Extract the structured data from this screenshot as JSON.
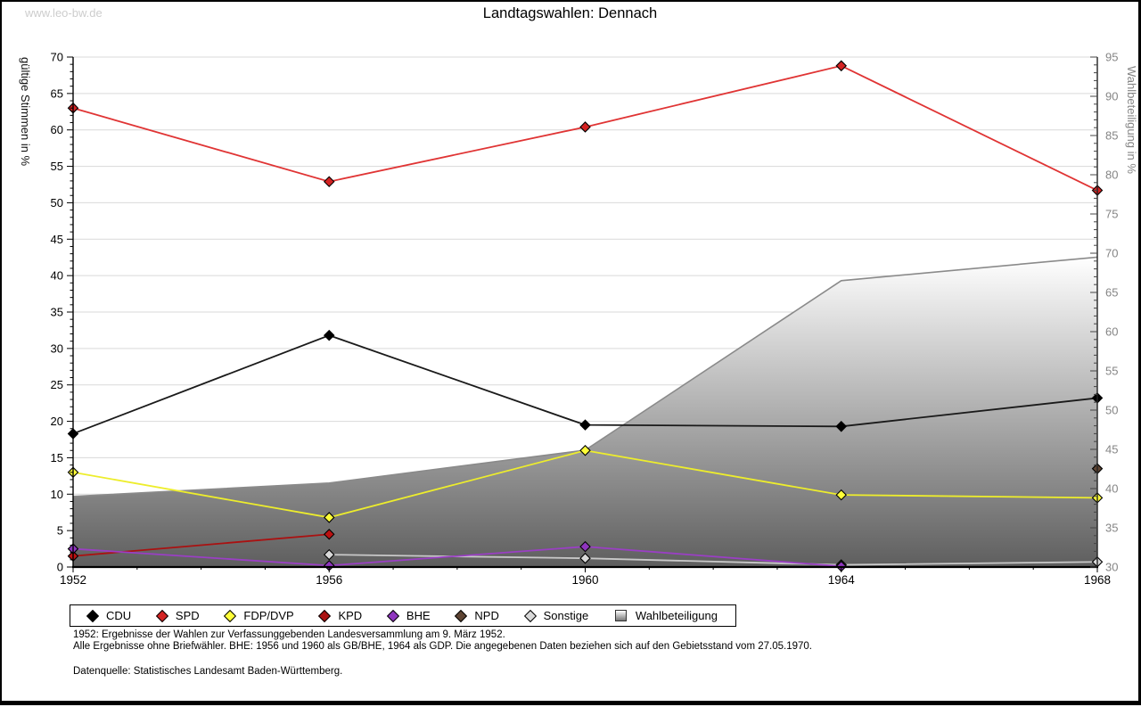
{
  "page": {
    "watermark": "www.leo-bw.de",
    "title": "Landtagswahlen: Dennach"
  },
  "chart_data": {
    "type": "line",
    "title": "Landtagswahlen: Dennach",
    "x": [
      1952,
      1956,
      1960,
      1964,
      1968
    ],
    "x_tick_labels": [
      "1952",
      "1956",
      "1960",
      "1964",
      "1968"
    ],
    "ylabel_left": "gültige Stimmen in %",
    "ylabel_right": "Wahlbeteiligung in %",
    "ylim_left": [
      0,
      70
    ],
    "ylim_right": [
      30,
      95
    ],
    "ytick_step": 5,
    "grid": true,
    "legend_position": "bottom",
    "series": [
      {
        "name": "Wahlbeteiligung",
        "kind": "area",
        "axis": "right",
        "color": "#8a8a8a",
        "values": [
          39.0,
          40.7,
          44.9,
          66.5,
          69.5
        ]
      },
      {
        "name": "Sonstige",
        "kind": "line",
        "axis": "left",
        "color": "#c9c9c9",
        "marker": "#d9d9d9",
        "values": [
          null,
          1.7,
          1.2,
          0.3,
          0.7
        ]
      },
      {
        "name": "KPD",
        "kind": "line",
        "axis": "left",
        "color": "#aa1111",
        "marker": "#bb1111",
        "values": [
          1.5,
          4.5,
          null,
          null,
          null
        ]
      },
      {
        "name": "BHE",
        "kind": "line",
        "axis": "left",
        "color": "#9a3fc4",
        "marker": "#8f35bf",
        "values": [
          2.5,
          0.2,
          2.8,
          0.1,
          null
        ]
      },
      {
        "name": "NPD",
        "kind": "line",
        "axis": "left",
        "color": "#5e4433",
        "marker": "#5e4433",
        "values": [
          null,
          null,
          null,
          null,
          13.5
        ]
      },
      {
        "name": "FDP/DVP",
        "kind": "line",
        "axis": "left",
        "color": "#eded2c",
        "marker": "#ffff38",
        "values": [
          13.0,
          6.8,
          16.0,
          9.9,
          9.5
        ]
      },
      {
        "name": "SPD",
        "kind": "line",
        "axis": "left",
        "color": "#e03434",
        "marker": "#d42222",
        "values": [
          63.0,
          52.9,
          60.4,
          68.8,
          51.7
        ]
      },
      {
        "name": "CDU",
        "kind": "line",
        "axis": "left",
        "color": "#1a1a1a",
        "marker": "#000000",
        "values": [
          18.3,
          31.8,
          19.5,
          19.3,
          23.2
        ]
      }
    ],
    "area_gradient": {
      "top": "#ffffff",
      "bottom": "#5e5e5e"
    },
    "grid_color": "#d9d9d9",
    "right_axis_text_color": "#858585"
  },
  "legend": {
    "items": [
      {
        "label": "CDU",
        "icon": "diamond",
        "color": "#000000"
      },
      {
        "label": "SPD",
        "icon": "diamond",
        "color": "#d42222"
      },
      {
        "label": "FDP/DVP",
        "icon": "diamond",
        "color": "#ffff38"
      },
      {
        "label": "KPD",
        "icon": "diamond",
        "color": "#aa1111"
      },
      {
        "label": "BHE",
        "icon": "diamond",
        "color": "#8f35bf"
      },
      {
        "label": "NPD",
        "icon": "diamond",
        "color": "#5e4433"
      },
      {
        "label": "Sonstige",
        "icon": "diamond",
        "color": "#d9d9d9"
      },
      {
        "label": "Wahlbeteiligung",
        "icon": "area-square",
        "color": "#aaaaaa"
      }
    ]
  },
  "footer": {
    "note1": "1952: Ergebnisse der Wahlen zur Verfassunggebenden Landesversammlung am 9. März 1952.",
    "note2": "Alle Ergebnisse ohne Briefwähler. BHE: 1956 und 1960 als GB/BHE, 1964 als GDP. Die angegebenen Daten beziehen sich auf den Gebietsstand vom 27.05.1970.",
    "source": "Datenquelle: Statistisches Landesamt Baden-Württemberg."
  }
}
